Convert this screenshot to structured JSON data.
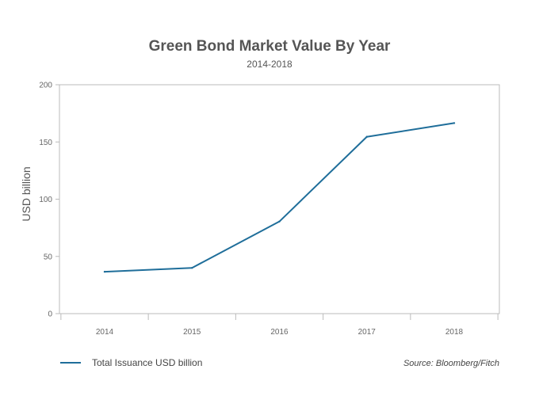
{
  "chart_data": {
    "type": "line",
    "title": "Green Bond Market Value By Year",
    "subtitle": "2014-2018",
    "xlabel": "",
    "ylabel": "USD billion",
    "categories": [
      "2014",
      "2015",
      "2016",
      "2017",
      "2018"
    ],
    "series": [
      {
        "name": "Total Issuance USD billion",
        "values": [
          36.6,
          40.0,
          80.5,
          154.5,
          166.5
        ]
      }
    ],
    "ylim": [
      0,
      200
    ],
    "yticks": [
      "0",
      "50",
      "100",
      "150",
      "200"
    ],
    "grid": false,
    "legend_position": "bottom-left",
    "source": "Source: Bloomberg/Fitch",
    "colors": {
      "line": "#1f6e9a",
      "axis": "#bbbbbb",
      "text": "#555555"
    }
  }
}
